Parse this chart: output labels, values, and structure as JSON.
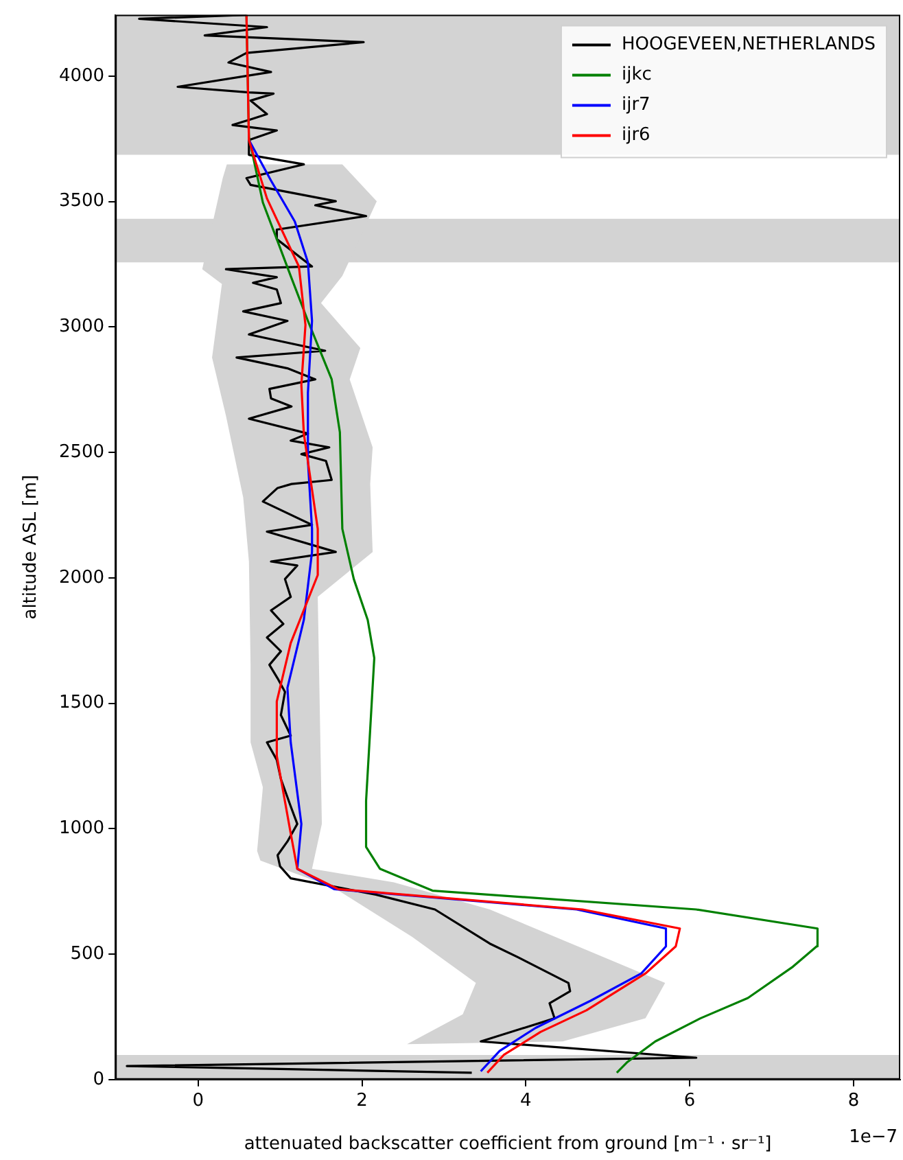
{
  "chart_data": {
    "type": "line",
    "xlabel": "attenuated backscatter coefficient from ground [m⁻¹ · sr⁻¹]",
    "ylabel": "altitude ASL [m]",
    "xlim": [
      -1.01,
      8.57
    ],
    "ylim": [
      0,
      4244
    ],
    "xticks": [
      0,
      2,
      4,
      6,
      8
    ],
    "yticks": [
      0,
      500,
      1000,
      1500,
      2000,
      2500,
      3000,
      3500,
      4000
    ],
    "grid": false,
    "legend": "top right",
    "line_style": "solid",
    "marker": "none",
    "annotations": [
      "1e−7"
    ],
    "bands": [
      {
        "axis": "y",
        "from": 3257,
        "to": 3431,
        "color": "#d3d3d3"
      },
      {
        "axis": "y",
        "from": 3686,
        "to": 4244,
        "color": "#d3d3d3"
      },
      {
        "axis": "y",
        "from": 0,
        "to": 98,
        "color": "#d3d3d3"
      }
    ],
    "series": [
      {
        "type": "area",
        "color": "#d3d3d3",
        "x": [
          1.76,
          2.18,
          1.76,
          1.5,
          1.98,
          1.85,
          2.13,
          2.1,
          2.13,
          1.46,
          1.51,
          1.39,
          2.39,
          3.56,
          5.03,
          5.7,
          5.46,
          4.45,
          2.55,
          3.23,
          3.39,
          2.61,
          1.66,
          0.76,
          0.72,
          0.79,
          0.64,
          0.64,
          0.62,
          0.55,
          0.34,
          0.17,
          0.29,
          0.05,
          0.3,
          0.35
        ],
        "values": [
          3648,
          3501,
          3203,
          3095,
          2916,
          2791,
          2520,
          2374,
          2103,
          1924,
          1019,
          840,
          786,
          678,
          477,
          385,
          244,
          152,
          141,
          260,
          385,
          569,
          764,
          873,
          911,
          1165,
          1344,
          1653,
          2065,
          2320,
          2645,
          2878,
          3171,
          3230,
          3593,
          3648
        ]
      },
      {
        "name": "HOOGEVEEN,NETHERLANDS",
        "color": "#000000",
        "x": [
          3.34,
          -0.87,
          6.08,
          3.45,
          4.35,
          4.29,
          4.54,
          4.52,
          3.9,
          3.56,
          2.89,
          2.17,
          1.13,
          1.0,
          0.97,
          1.09,
          1.21,
          1.13,
          1.01,
          0.96,
          0.84,
          1.13,
          1.01,
          1.06,
          0.97,
          0.87,
          1.01,
          0.84,
          1.04,
          0.89,
          1.13,
          1.06,
          1.21,
          0.89,
          1.68,
          0.84,
          1.39,
          0.79,
          0.97,
          1.14,
          1.63,
          1.56,
          1.26,
          1.6,
          1.13,
          1.34,
          0.62,
          1.14,
          0.89,
          0.87,
          1.43,
          1.09,
          0.47,
          1.55,
          0.62,
          1.09,
          0.55,
          1.01,
          0.96,
          0.67,
          0.96,
          0.34,
          1.39,
          0.96,
          0.96,
          2.05,
          1.43,
          1.68,
          0.64,
          0.59,
          1.29,
          0.62,
          0.62,
          0.96,
          0.42,
          0.64,
          0.84,
          0.64,
          0.92,
          0.62,
          -0.25,
          0.89,
          0.37,
          0.59,
          2.02,
          0.08,
          0.84,
          -0.72,
          0.59
        ],
        "values": [
          27,
          54,
          87,
          152,
          244,
          304,
          352,
          385,
          488,
          542,
          678,
          737,
          802,
          850,
          894,
          949,
          1019,
          1089,
          1198,
          1274,
          1344,
          1371,
          1453,
          1545,
          1599,
          1653,
          1707,
          1762,
          1816,
          1870,
          1924,
          1995,
          2049,
          2065,
          2103,
          2184,
          2211,
          2304,
          2358,
          2374,
          2390,
          2466,
          2493,
          2520,
          2547,
          2575,
          2634,
          2683,
          2715,
          2753,
          2791,
          2835,
          2878,
          2905,
          2970,
          3024,
          3062,
          3095,
          3149,
          3176,
          3198,
          3230,
          3241,
          3350,
          3388,
          3442,
          3485,
          3501,
          3566,
          3593,
          3648,
          3686,
          3745,
          3783,
          3805,
          3827,
          3848,
          3902,
          3930,
          3935,
          3957,
          4016,
          4054,
          4092,
          4135,
          4162,
          4195,
          4228,
          4244
        ]
      },
      {
        "name": "ijkc",
        "color": "#008000",
        "x": [
          5.11,
          5.24,
          5.58,
          6.13,
          6.71,
          7.26,
          7.55,
          7.56,
          6.08,
          2.86,
          2.22,
          2.05,
          2.05,
          2.15,
          2.07,
          1.9,
          1.76,
          1.73,
          1.63,
          1.34,
          1.13,
          0.96,
          0.79,
          0.62,
          0.59
        ],
        "values": [
          27,
          70,
          152,
          244,
          325,
          450,
          531,
          602,
          678,
          753,
          840,
          927,
          1111,
          1680,
          1832,
          1995,
          2195,
          2580,
          2791,
          3024,
          3203,
          3350,
          3496,
          3756,
          4244
        ]
      },
      {
        "name": "ijr7",
        "color": "#0000ff",
        "x": [
          3.45,
          3.68,
          4.12,
          4.79,
          5.41,
          5.71,
          5.71,
          4.62,
          1.66,
          1.21,
          1.26,
          1.13,
          1.09,
          1.29,
          1.39,
          1.39,
          1.34,
          1.34,
          1.39,
          1.34,
          1.18,
          0.89,
          0.62
        ],
        "values": [
          33,
          114,
          206,
          314,
          423,
          531,
          602,
          678,
          759,
          840,
          1019,
          1344,
          1561,
          1832,
          2103,
          2195,
          2466,
          2737,
          3024,
          3257,
          3420,
          3583,
          3745
        ]
      },
      {
        "name": "ijr6",
        "color": "#ff0000",
        "x": [
          3.53,
          3.73,
          4.18,
          4.74,
          5.46,
          5.83,
          5.88,
          4.69,
          1.71,
          1.21,
          1.13,
          0.96,
          0.96,
          1.13,
          1.46,
          1.46,
          1.29,
          1.26,
          1.31,
          1.23,
          0.84,
          0.67,
          0.62,
          0.59
        ],
        "values": [
          27,
          98,
          190,
          276,
          423,
          531,
          602,
          678,
          759,
          840,
          981,
          1290,
          1507,
          1740,
          2011,
          2195,
          2575,
          2770,
          3008,
          3241,
          3512,
          3691,
          3745,
          4244
        ]
      }
    ]
  }
}
